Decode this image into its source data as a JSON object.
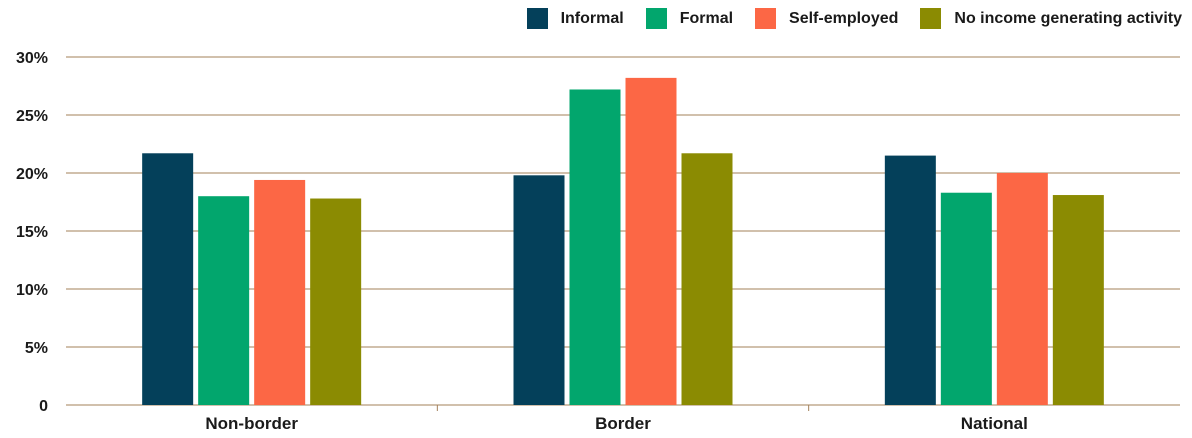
{
  "chart_data": {
    "type": "bar",
    "categories": [
      "Non-border",
      "Border",
      "National"
    ],
    "series": [
      {
        "name": "Informal",
        "color": "#04405a",
        "values": [
          21.7,
          19.8,
          21.5
        ]
      },
      {
        "name": "Formal",
        "color": "#02a66d",
        "values": [
          18.0,
          27.2,
          18.3
        ]
      },
      {
        "name": "Self-employed",
        "color": "#fc6745",
        "values": [
          19.4,
          28.2,
          20.0
        ]
      },
      {
        "name": "No income generating activity",
        "color": "#8b8b02",
        "values": [
          17.8,
          21.7,
          18.1
        ]
      }
    ],
    "ylim": [
      0,
      30
    ],
    "yticks": [
      0,
      5,
      10,
      15,
      20,
      25,
      30
    ],
    "ytick_labels": [
      "0",
      "5%",
      "10%",
      "15%",
      "20%",
      "25%",
      "30%"
    ],
    "grid": true,
    "grid_color": "#a3805a",
    "legend_position": "top-right",
    "title": "",
    "xlabel": "",
    "ylabel": ""
  }
}
